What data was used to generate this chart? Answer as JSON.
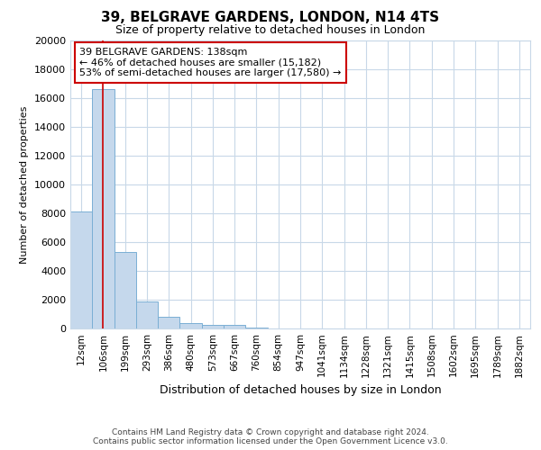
{
  "title": "39, BELGRAVE GARDENS, LONDON, N14 4TS",
  "subtitle": "Size of property relative to detached houses in London",
  "xlabel": "Distribution of detached houses by size in London",
  "ylabel": "Number of detached properties",
  "categories": [
    "12sqm",
    "106sqm",
    "199sqm",
    "293sqm",
    "386sqm",
    "480sqm",
    "573sqm",
    "667sqm",
    "760sqm",
    "854sqm",
    "947sqm",
    "1041sqm",
    "1134sqm",
    "1228sqm",
    "1321sqm",
    "1415sqm",
    "1508sqm",
    "1602sqm",
    "1695sqm",
    "1789sqm",
    "1882sqm"
  ],
  "values": [
    8100,
    16600,
    5300,
    1850,
    800,
    350,
    250,
    250,
    50,
    0,
    0,
    0,
    0,
    0,
    0,
    0,
    0,
    0,
    0,
    0,
    0
  ],
  "bar_color": "#c5d8ec",
  "bar_edgecolor": "#7aafd4",
  "vline_bar_index": 1,
  "vline_color": "#cc0000",
  "ylim": [
    0,
    20000
  ],
  "yticks": [
    0,
    2000,
    4000,
    6000,
    8000,
    10000,
    12000,
    14000,
    16000,
    18000,
    20000
  ],
  "annotation_text": "39 BELGRAVE GARDENS: 138sqm\n← 46% of detached houses are smaller (15,182)\n53% of semi-detached houses are larger (17,580) →",
  "annotation_box_color": "#ffffff",
  "annotation_edge_color": "#cc0000",
  "footer_line1": "Contains HM Land Registry data © Crown copyright and database right 2024.",
  "footer_line2": "Contains public sector information licensed under the Open Government Licence v3.0.",
  "background_color": "#ffffff",
  "grid_color": "#c8d8e8",
  "title_fontsize": 11,
  "subtitle_fontsize": 9,
  "xlabel_fontsize": 9,
  "ylabel_fontsize": 8,
  "tick_fontsize": 8,
  "xtick_fontsize": 7.5,
  "annotation_fontsize": 8
}
